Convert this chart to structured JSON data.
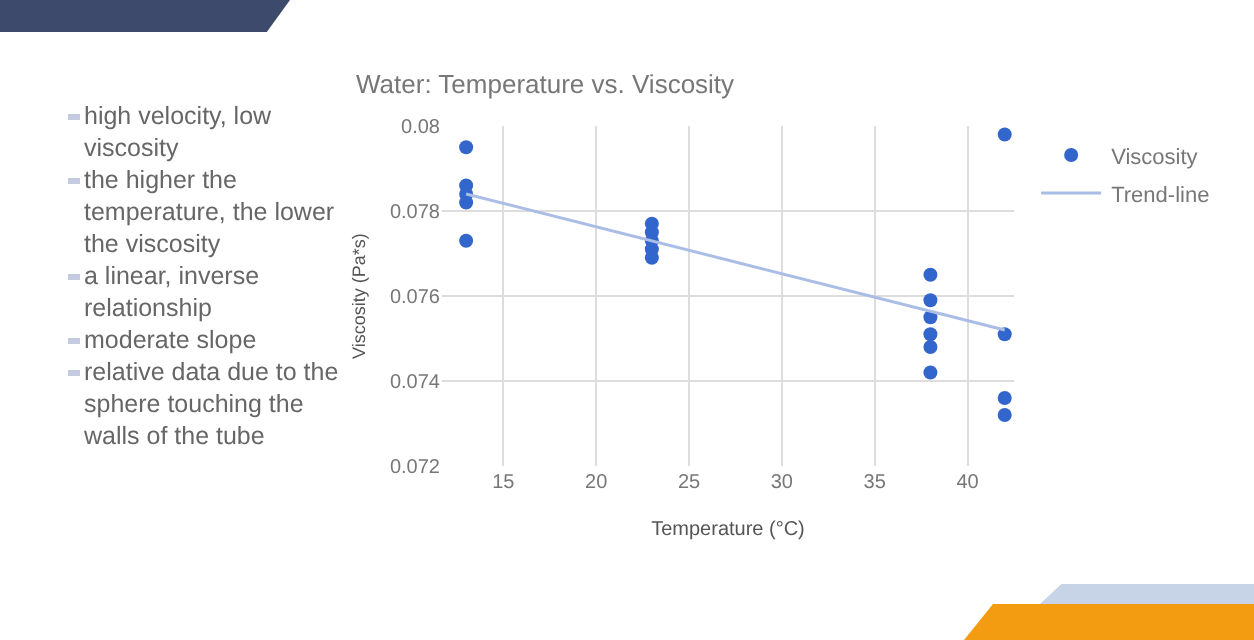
{
  "chart_data": {
    "type": "scatter",
    "title": "Water: Temperature vs. Viscosity",
    "xlabel": "Temperature (°C)",
    "ylabel": "Viscosity (Pa*s)",
    "xlim": [
      11.7,
      42.5
    ],
    "xticks": [
      15,
      20,
      25,
      30,
      35,
      40
    ],
    "ylim": [
      0.072,
      0.08
    ],
    "yticks": [
      0.072,
      0.074,
      0.076,
      0.078,
      0.08
    ],
    "grid": true,
    "legend": "top right",
    "series": [
      {
        "name": "Viscosity",
        "marker": "circle",
        "color": "#3366cc",
        "x": [
          13,
          13,
          13,
          13,
          13,
          23,
          23,
          23,
          23,
          23,
          38,
          38,
          38,
          38,
          38,
          38,
          42,
          42,
          42,
          42
        ],
        "values": [
          0.0795,
          0.0786,
          0.0784,
          0.0782,
          0.0773,
          0.0777,
          0.0775,
          0.0773,
          0.0771,
          0.0769,
          0.0765,
          0.0759,
          0.0755,
          0.0751,
          0.0748,
          0.0742,
          0.0798,
          0.0751,
          0.0736,
          0.0732
        ]
      },
      {
        "name": "Trend-line",
        "type": "line",
        "color": "#a9bde6",
        "x": [
          13,
          42
        ],
        "values": [
          0.0784,
          0.0752
        ]
      }
    ],
    "annotations": [
      "high velocity, low viscosity",
      "the higher the temperature, the lower the viscosity",
      "a linear, inverse relationship",
      "moderate slope",
      "relative data due to the sphere touching the walls of the tube"
    ]
  }
}
